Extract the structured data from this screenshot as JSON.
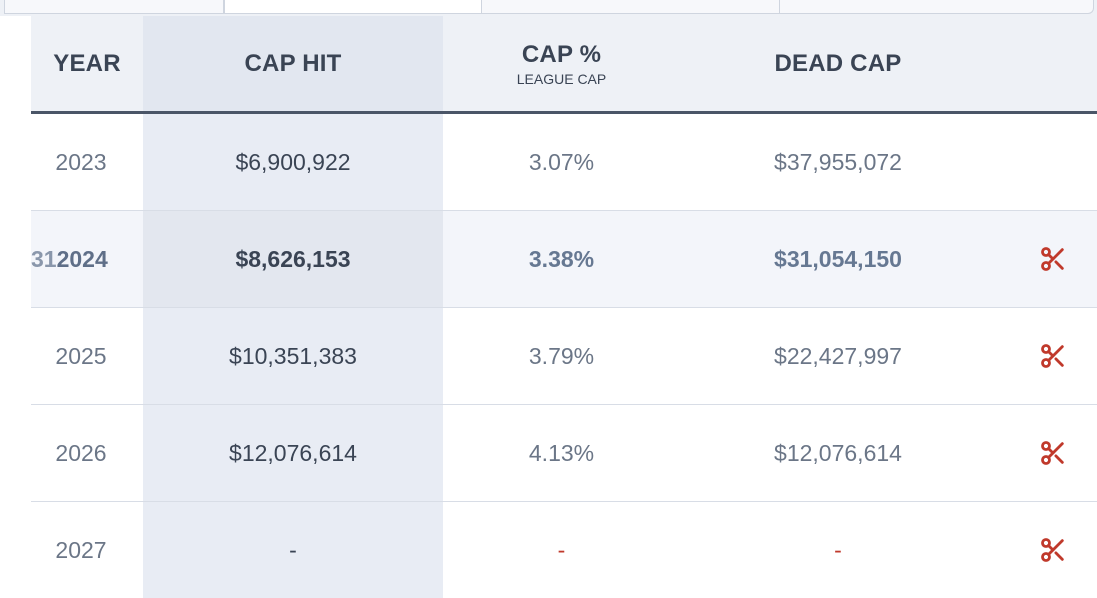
{
  "header": {
    "year": "YEAR",
    "cap_hit": "CAP HIT",
    "cap_pct": "CAP %",
    "cap_pct_sub": "LEAGUE CAP",
    "dead_cap": "DEAD CAP"
  },
  "rows": [
    {
      "year": "2023",
      "cap_hit": "$6,900,922",
      "cap_pct": "3.07%",
      "dead_cap": "$37,955,072",
      "cut_icon": false
    },
    {
      "year_prefix": "31",
      "year": "2024",
      "cap_hit": "$8,626,153",
      "cap_pct": "3.38%",
      "dead_cap": "$31,054,150",
      "cut_icon": true
    },
    {
      "year": "2025",
      "cap_hit": "$10,351,383",
      "cap_pct": "3.79%",
      "dead_cap": "$22,427,997",
      "cut_icon": true
    },
    {
      "year": "2026",
      "cap_hit": "$12,076,614",
      "cap_pct": "4.13%",
      "dead_cap": "$12,076,614",
      "cut_icon": true
    },
    {
      "year": "2027",
      "cap_hit": "-",
      "cap_pct": "-",
      "dead_cap": "-",
      "cut_icon": true
    }
  ],
  "icons": {
    "cut": "scissors-icon"
  },
  "colors": {
    "accent_red": "#c0392b",
    "header_border": "#4a5567"
  }
}
